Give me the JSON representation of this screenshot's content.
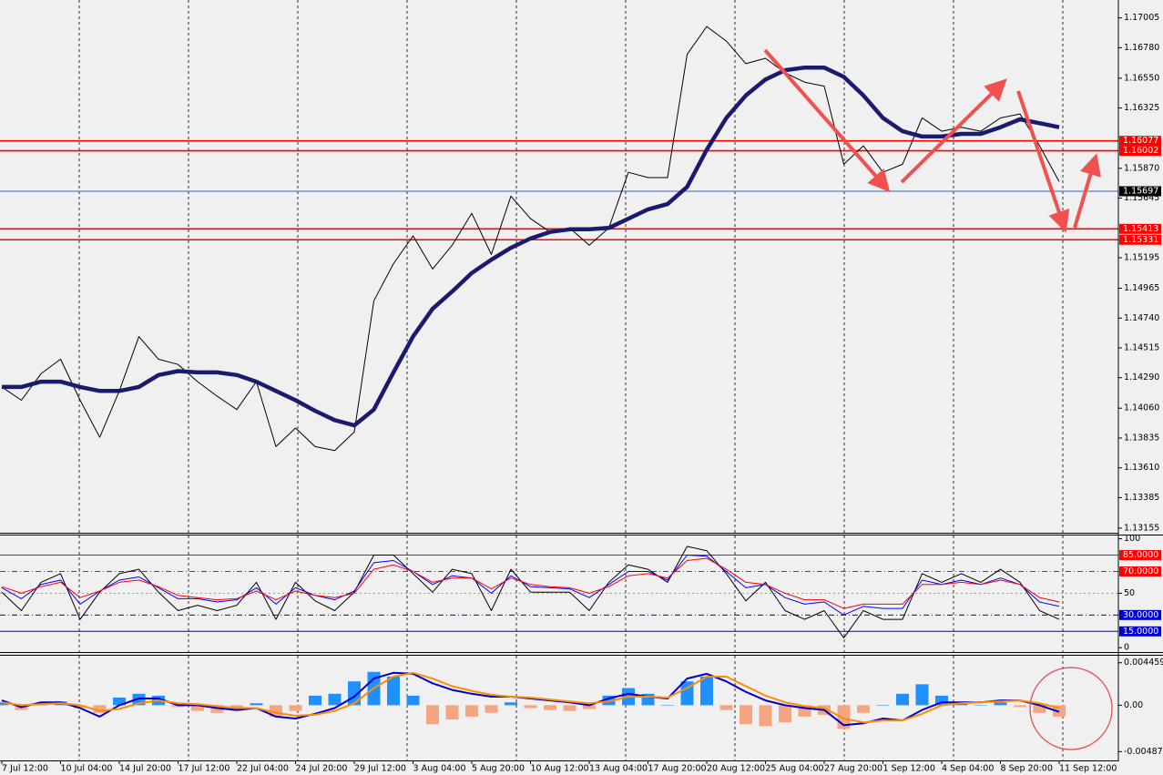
{
  "chart_data": [
    {
      "type": "line",
      "ylim": [
        1.1312,
        1.1714
      ],
      "yticks": [
        1.17005,
        {
          "value": 1.1678,
          "label": "1.16780"
        },
        {
          "value": 1.1655,
          "label": "1.16550"
        },
        1.16325,
        {
          "value": 1.1587,
          "label": "1.15870"
        },
        1.15645,
        1.15195,
        1.14965,
        {
          "value": 1.1474,
          "label": "1.14740"
        },
        1.14515,
        {
          "value": 1.1429,
          "label": "1.14290"
        },
        {
          "value": 1.1406,
          "label": "1.14060"
        },
        1.13835,
        {
          "value": 1.1361,
          "label": "1.13610"
        },
        1.13385,
        1.13155
      ],
      "levels": [
        1.16077,
        1.16002,
        1.15697,
        1.15413,
        1.15331
      ],
      "level_colors": [
        "#ff0000",
        "#ff0000",
        "#3a5fcd",
        "#ff0000",
        "#ff0000"
      ],
      "level_label_colors": [
        "#ff0000",
        "#ff0000",
        "#000000",
        "#ff0000",
        "#ff0000"
      ],
      "series": [
        {
          "color": "#000000",
          "values": [
            1.1422,
            1.1412,
            1.1432,
            1.1443,
            1.1412,
            1.1384,
            1.1419,
            1.146,
            1.1443,
            1.1439,
            1.1426,
            1.1415,
            1.1405,
            1.1426,
            1.1377,
            1.1391,
            1.1377,
            1.1374,
            1.1388,
            1.1487,
            1.1515,
            1.1536,
            1.1511,
            1.1529,
            1.1553,
            1.1522,
            1.1566,
            1.1549,
            1.1539,
            1.1542,
            1.1529,
            1.1542,
            1.1584,
            1.158,
            1.158,
            1.1673,
            1.1694,
            1.1683,
            1.1666,
            1.167,
            1.1659,
            1.1652,
            1.1649,
            1.159,
            1.1604,
            1.1584,
            1.159,
            1.1625,
            1.1615,
            1.1618,
            1.1615,
            1.1625,
            1.1628,
            1.1604,
            1.1577
          ]
        },
        {
          "color": "#1a1a6e",
          "values": [
            1.1422,
            1.1422,
            1.1426,
            1.1426,
            1.1422,
            1.1419,
            1.1419,
            1.1422,
            1.1431,
            1.1434,
            1.1433,
            1.1433,
            1.1431,
            1.1426,
            1.1419,
            1.1412,
            1.1404,
            1.1397,
            1.1393,
            1.1405,
            1.1433,
            1.146,
            1.1481,
            1.1494,
            1.1508,
            1.1518,
            1.1527,
            1.1534,
            1.1539,
            1.1541,
            1.1541,
            1.1542,
            1.1549,
            1.1556,
            1.156,
            1.1573,
            1.1601,
            1.1625,
            1.1642,
            1.1654,
            1.1661,
            1.1663,
            1.1663,
            1.1656,
            1.1642,
            1.1625,
            1.1615,
            1.1611,
            1.1611,
            1.1613,
            1.1613,
            1.1618,
            1.1624,
            1.1621,
            1.1618
          ]
        }
      ]
    },
    {
      "type": "line",
      "ylim": [
        -4,
        103
      ],
      "yticks": [
        0,
        50,
        100
      ],
      "levels": [
        {
          "value": 85,
          "label": "85.0000"
        },
        {
          "value": 70,
          "label": "70.0000"
        },
        {
          "value": 30,
          "label": "30.0000"
        },
        {
          "value": 15,
          "label": "15.0000"
        }
      ],
      "level_colors": [
        "#ff0000",
        "#ff0000",
        "#0000cd",
        "#0000cd"
      ],
      "level_styles": [
        "solid",
        "dashdot",
        "dashdot",
        "solid"
      ],
      "series": [
        {
          "color": "#000000",
          "values": [
            51,
            34,
            60,
            68,
            26,
            51,
            68,
            72,
            51,
            34,
            39,
            34,
            39,
            60,
            26,
            60,
            43,
            34,
            51,
            85,
            85,
            68,
            51,
            72,
            68,
            34,
            72,
            51,
            51,
            51,
            34,
            60,
            76,
            72,
            60,
            93,
            89,
            68,
            43,
            60,
            34,
            26,
            34,
            9,
            34,
            26,
            26,
            68,
            60,
            68,
            60,
            72,
            60,
            34,
            26
          ]
        },
        {
          "color": "#0000ff",
          "values": [
            55,
            45,
            58,
            62,
            40,
            52,
            62,
            65,
            55,
            45,
            45,
            42,
            44,
            55,
            40,
            55,
            48,
            44,
            52,
            78,
            80,
            70,
            58,
            66,
            64,
            50,
            66,
            56,
            55,
            54,
            46,
            58,
            70,
            70,
            62,
            85,
            84,
            70,
            55,
            58,
            46,
            40,
            42,
            30,
            38,
            36,
            36,
            62,
            58,
            62,
            58,
            64,
            58,
            42,
            38
          ]
        },
        {
          "color": "#ff0000",
          "values": [
            56,
            50,
            56,
            60,
            46,
            52,
            60,
            62,
            56,
            48,
            46,
            44,
            45,
            52,
            44,
            52,
            48,
            46,
            50,
            72,
            76,
            70,
            60,
            64,
            64,
            54,
            64,
            58,
            56,
            55,
            50,
            56,
            66,
            68,
            64,
            80,
            82,
            72,
            60,
            58,
            50,
            44,
            44,
            36,
            40,
            40,
            40,
            58,
            58,
            60,
            58,
            62,
            58,
            46,
            42
          ]
        }
      ]
    },
    {
      "type": "bar",
      "categories": [
        "7 Jul 12:00",
        null,
        null,
        "10 Jul 04:00",
        null,
        null,
        "14 Jul 20:00",
        null,
        null,
        "17 Jul 12:00",
        null,
        null,
        "22 Jul 04:00",
        null,
        null,
        "24 Jul 20:00",
        null,
        null,
        "29 Jul 12:00",
        null,
        null,
        "3 Aug 04:00",
        null,
        null,
        "5 Aug 20:00",
        null,
        null,
        "10 Aug 12:00",
        null,
        null,
        "13 Aug 04:00",
        null,
        null,
        "17 Aug 20:00",
        null,
        null,
        "20 Aug 12:00",
        null,
        null,
        "25 Aug 04:00",
        null,
        null,
        "27 Aug 20:00",
        null,
        null,
        "1 Sep 12:00",
        null,
        null,
        "4 Sep 04:00",
        null,
        null,
        "8 Sep 20:00",
        null,
        null,
        "11 Sep 12:00"
      ],
      "ylim": [
        -0.0058,
        0.0052
      ],
      "yticks": [
        0.0044593,
        {
          "value": 0,
          "label": "0.00"
        },
        -0.004873
      ],
      "series": [
        {
          "type": "bar",
          "color": "#1e90ff",
          "negative_color": "#f4a582",
          "values": [
            0.0003,
            -0.0005,
            0.0002,
            0.0004,
            -0.0003,
            -0.0008,
            0.0008,
            0.0012,
            0.001,
            -0.0002,
            -0.0006,
            -0.0008,
            -0.0006,
            0.0002,
            -0.0012,
            -0.0006,
            0.001,
            0.0012,
            0.0025,
            0.0035,
            0.003,
            0.001,
            -0.002,
            -0.0015,
            -0.0012,
            -0.0008,
            0.0003,
            -0.0003,
            -0.0005,
            -0.0006,
            -0.0004,
            0.001,
            0.0018,
            0.0012,
            0,
            0.0025,
            0.003,
            -0.0005,
            -0.002,
            -0.0022,
            -0.0018,
            -0.0012,
            -0.001,
            -0.0025,
            -0.0008,
            0,
            0.0012,
            0.0022,
            0.001,
            0.0002,
            0,
            0.0003,
            -0.0002,
            -0.0008,
            -0.0012
          ]
        },
        {
          "type": "line",
          "color": "#0000cd",
          "values": [
            0.0005,
            -0.0002,
            0.0003,
            0.0003,
            -0.0003,
            -0.0012,
            0,
            0.0007,
            0.0007,
            0,
            0,
            -0.0003,
            -0.0005,
            -0.0003,
            -0.0012,
            -0.0014,
            -0.0009,
            -0.0003,
            0.0009,
            0.0028,
            0.0034,
            0.0033,
            0.0023,
            0.0016,
            0.0012,
            0.0009,
            0.0009,
            0.0007,
            0.0005,
            0.0003,
            0,
            0.0007,
            0.0012,
            0.0009,
            0.0007,
            0.0028,
            0.0033,
            0.0025,
            0.0014,
            0.0005,
            0,
            -0.0003,
            -0.0005,
            -0.0021,
            -0.0019,
            -0.0014,
            -0.0016,
            -0.0005,
            0.0003,
            0.0003,
            0.0003,
            0.0005,
            0.0005,
            0,
            -0.0007
          ]
        },
        {
          "type": "line",
          "color": "#ff8c00",
          "values": [
            0.0003,
            0,
            0.0001,
            0.0002,
            0,
            -0.0006,
            -0.0004,
            0.0002,
            0.0005,
            0.0002,
            0.0001,
            -0.0001,
            -0.0003,
            -0.0003,
            -0.0008,
            -0.0011,
            -0.001,
            -0.0006,
            0.0002,
            0.0018,
            0.003,
            0.0034,
            0.0028,
            0.002,
            0.0015,
            0.0011,
            0.0009,
            0.0008,
            0.0006,
            0.0004,
            0.0002,
            0.0004,
            0.0009,
            0.0009,
            0.0008,
            0.0018,
            0.003,
            0.003,
            0.002,
            0.001,
            0.0003,
            -0.0001,
            -0.0003,
            -0.0014,
            -0.0018,
            -0.0016,
            -0.0016,
            -0.0009,
            0,
            0.0002,
            0.0003,
            0.0004,
            0.0005,
            0.0002,
            -0.0003
          ]
        }
      ]
    }
  ]
}
